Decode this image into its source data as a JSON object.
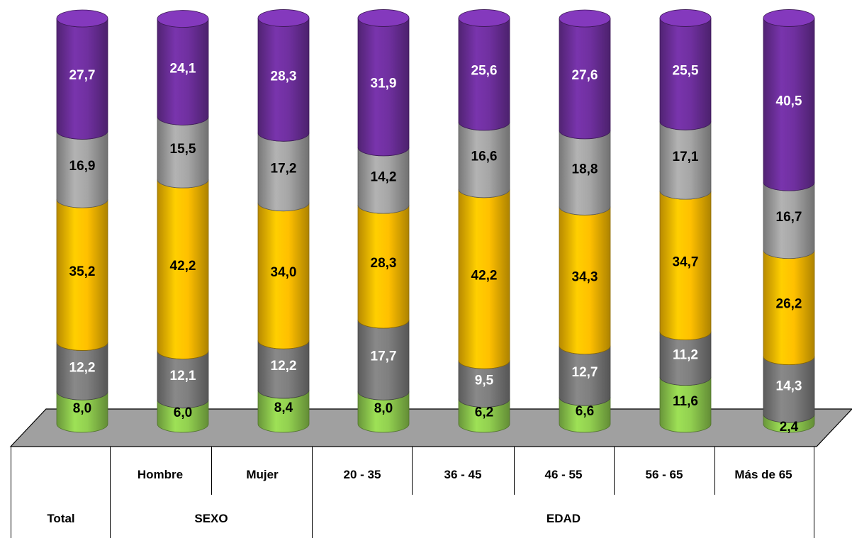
{
  "chart_data": {
    "type": "bar",
    "stacked": true,
    "style": "3d-cylinder",
    "orientation": "vertical",
    "categories": [
      "Total",
      "Hombre",
      "Mujer",
      "20 - 35",
      "36 - 45",
      "46 - 55",
      "56 - 65",
      "Más de 65"
    ],
    "groups": [
      {
        "label": "Total",
        "categories": [
          "Total"
        ]
      },
      {
        "label": "SEXO",
        "categories": [
          "Hombre",
          "Mujer"
        ]
      },
      {
        "label": "EDAD",
        "categories": [
          "20 - 35",
          "36 - 45",
          "46 - 55",
          "56 - 65",
          "Más de 65"
        ]
      }
    ],
    "series": [
      {
        "color": "#92d050",
        "values": [
          8.0,
          6.0,
          8.4,
          8.0,
          6.2,
          6.6,
          11.6,
          2.4
        ],
        "labels": [
          "8,0",
          "6,0",
          "8,4",
          "8,0",
          "6,2",
          "6,6",
          "11,6",
          "2,4"
        ]
      },
      {
        "color": "#7f7f7f",
        "values": [
          12.2,
          12.1,
          12.2,
          17.7,
          9.5,
          12.7,
          11.2,
          14.3
        ],
        "labels": [
          "12,2",
          "12,1",
          "12,2",
          "17,7",
          "9,5",
          "12,7",
          "11,2",
          "14,3"
        ]
      },
      {
        "color": "#ffc000",
        "values": [
          35.2,
          42.2,
          34.0,
          28.3,
          42.2,
          34.3,
          34.7,
          26.2
        ],
        "labels": [
          "35,2",
          "42,2",
          "34,0",
          "28,3",
          "42,2",
          "34,3",
          "34,7",
          "26,2"
        ]
      },
      {
        "color": "#a6a6a6",
        "values": [
          16.9,
          15.5,
          17.2,
          14.2,
          16.6,
          18.8,
          17.1,
          16.7
        ],
        "labels": [
          "16,9",
          "15,5",
          "17,2",
          "14,2",
          "16,6",
          "18,8",
          "17,1",
          "16,7"
        ]
      },
      {
        "color": "#7030a0",
        "values": [
          27.7,
          24.1,
          28.3,
          31.9,
          25.6,
          27.6,
          25.5,
          40.5
        ],
        "labels": [
          "27,7",
          "24,1",
          "28,3",
          "31,9",
          "25,6",
          "27,6",
          "25,5",
          "40,5"
        ]
      }
    ],
    "label_colors": [
      "#000000",
      "#ffffff",
      "#000000",
      "#000000",
      "#ffffff"
    ],
    "ylim": [
      0,
      100
    ],
    "grid": false,
    "legend": "none"
  }
}
